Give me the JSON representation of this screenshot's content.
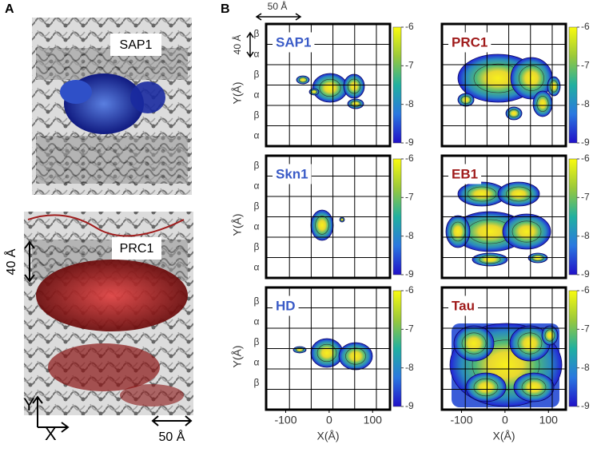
{
  "panel_a": {
    "label": "A",
    "top_label": "SAP1",
    "bottom_label": "PRC1",
    "scale_vertical": "40 Å",
    "scale_horizontal": "50 Å",
    "axis_y": "Y",
    "axis_x": "X"
  },
  "panel_b": {
    "label": "B",
    "scale_horizontal": "50 Å",
    "scale_vertical": "40 Å",
    "y_axis_label": "Y(Å)",
    "x_axis_label": "X(Å)",
    "xlim": [
      -145,
      140
    ],
    "xticks": [
      -100,
      0,
      100
    ],
    "colorbar_lim": [
      -9,
      -6
    ],
    "colorbar_ticks": [
      -6,
      -7,
      -8,
      -9
    ],
    "maps": [
      {
        "name": "SAP1",
        "color": "#3a5bc7",
        "row_labels": [
          "β",
          "α",
          "β",
          "α",
          "β",
          "α"
        ]
      },
      {
        "name": "PRC1",
        "color": "#a01c1c"
      },
      {
        "name": "Skn1",
        "color": "#3a5bc7",
        "row_labels": [
          "β",
          "α",
          "β",
          "α",
          "β",
          "α"
        ]
      },
      {
        "name": "EB1",
        "color": "#a01c1c"
      },
      {
        "name": "HD",
        "color": "#3a5bc7",
        "row_labels": [
          "β",
          "α",
          "β",
          "α",
          "β"
        ]
      },
      {
        "name": "Tau",
        "color": "#a01c1c"
      }
    ]
  }
}
